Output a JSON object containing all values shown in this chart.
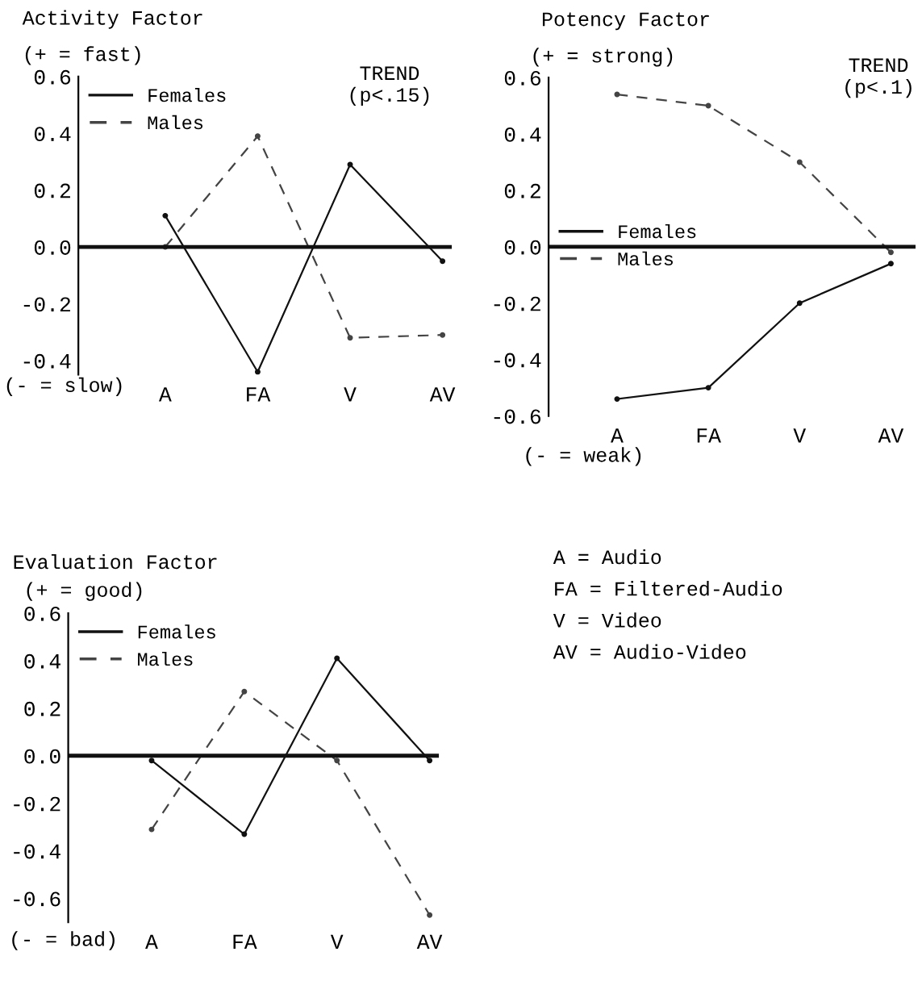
{
  "chart_data": [
    {
      "type": "line",
      "title": "Activity Factor",
      "categories": [
        "A",
        "FA",
        "V",
        "AV"
      ],
      "series": [
        {
          "name": "Females",
          "color": "#111111",
          "line_style": "solid",
          "values": [
            0.11,
            -0.44,
            0.29,
            -0.05
          ]
        },
        {
          "name": "Males",
          "color": "#444444",
          "line_style": "dashed",
          "values": [
            0.0,
            0.39,
            -0.32,
            -0.31
          ]
        }
      ],
      "ylim": [
        -0.45,
        0.6
      ],
      "yticks": [
        {
          "value": 0.6,
          "label": "0.6"
        },
        {
          "value": 0.4,
          "label": "0.4"
        },
        {
          "value": 0.2,
          "label": "0.2"
        },
        {
          "value": 0,
          "label": "0.0"
        },
        {
          "value": -0.2,
          "label": "-0.2"
        },
        {
          "value": -0.4,
          "label": "-0.4"
        }
      ],
      "ref_lines": [
        {
          "axis": "y",
          "value": 0,
          "color": "#111111"
        }
      ],
      "annotations": [
        "(+ = fast)",
        "(- = slow)",
        "TREND\n(p<.15)"
      ],
      "legend": "top left",
      "grid": false,
      "marker": "circle"
    },
    {
      "type": "line",
      "title": "Potency Factor",
      "categories": [
        "A",
        "FA",
        "V",
        "AV"
      ],
      "series": [
        {
          "name": "Females",
          "color": "#111111",
          "line_style": "solid",
          "values": [
            -0.54,
            -0.5,
            -0.2,
            -0.06
          ]
        },
        {
          "name": "Males",
          "color": "#444444",
          "line_style": "dashed",
          "values": [
            0.54,
            0.5,
            0.3,
            -0.02
          ]
        }
      ],
      "ylim": [
        -0.6,
        0.6
      ],
      "yticks": [
        {
          "value": 0.6,
          "label": "0.6"
        },
        {
          "value": 0.4,
          "label": "0.4"
        },
        {
          "value": 0.2,
          "label": "0.2"
        },
        {
          "value": 0,
          "label": "0.0"
        },
        {
          "value": -0.2,
          "label": "-0.2"
        },
        {
          "value": -0.4,
          "label": "-0.4"
        },
        {
          "value": -0.6,
          "label": "-0.6"
        }
      ],
      "ref_lines": [
        {
          "axis": "y",
          "value": 0,
          "color": "#111111"
        }
      ],
      "annotations": [
        "(+ = strong)",
        "(- = weak)",
        "TREND\n(p<.1)"
      ],
      "legend": "left",
      "grid": false,
      "marker": "circle"
    },
    {
      "type": "line",
      "title": "Evaluation Factor",
      "categories": [
        "A",
        "FA",
        "V",
        "AV"
      ],
      "series": [
        {
          "name": "Females",
          "color": "#111111",
          "line_style": "solid",
          "values": [
            -0.02,
            -0.33,
            0.41,
            -0.02
          ]
        },
        {
          "name": "Males",
          "color": "#444444",
          "line_style": "dashed",
          "values": [
            -0.31,
            0.27,
            -0.02,
            -0.67
          ]
        }
      ],
      "ylim": [
        -0.7,
        0.6
      ],
      "yticks": [
        {
          "value": 0.6,
          "label": "0.6"
        },
        {
          "value": 0.4,
          "label": "0.4"
        },
        {
          "value": 0.2,
          "label": "0.2"
        },
        {
          "value": 0,
          "label": "0.0"
        },
        {
          "value": -0.2,
          "label": "-0.2"
        },
        {
          "value": -0.4,
          "label": "-0.4"
        },
        {
          "value": -0.6,
          "label": "-0.6"
        }
      ],
      "ref_lines": [
        {
          "axis": "y",
          "value": 0,
          "color": "#111111"
        }
      ],
      "annotations": [
        "(+ = good)",
        "(- = bad)"
      ],
      "legend": "top left",
      "grid": false,
      "marker": "circle"
    },
    {
      "type": "other",
      "annotations": [
        "A = Audio",
        "FA = Filtered-Audio",
        "V = Video",
        "AV = Audio-Video"
      ]
    }
  ]
}
